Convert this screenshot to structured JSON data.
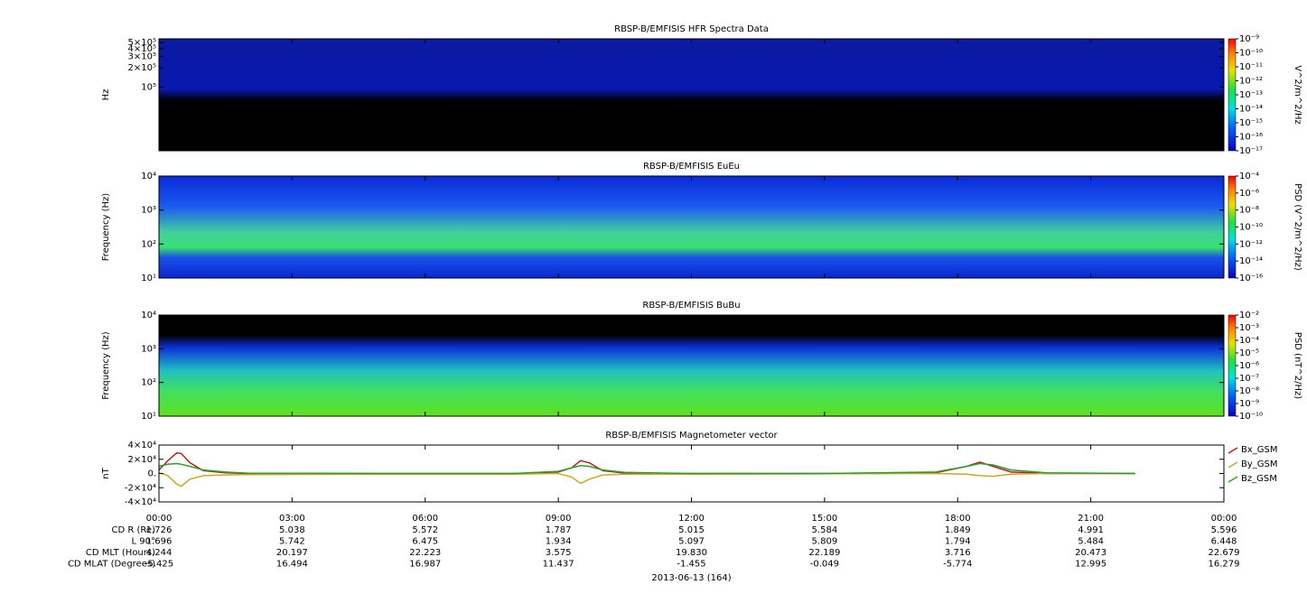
{
  "charts": [
    {
      "type": "spectrogram",
      "title": "RBSP-B/EMFISIS  HFR Spectra Data",
      "ylabel": "Hz",
      "log_y": true,
      "xlim": [
        0,
        24
      ],
      "xticks": [
        0,
        3,
        6,
        9,
        12,
        15,
        18,
        21,
        24
      ],
      "ylim": [
        10000,
        570000
      ],
      "yticks": [
        {
          "value": 100000,
          "label": "10⁵"
        },
        {
          "value": 200000,
          "label": "2×10⁵"
        },
        {
          "value": 300000,
          "label": "3×10⁵"
        },
        {
          "value": 400000,
          "label": "4×10⁵"
        },
        {
          "value": 500000,
          "label": "5×10⁵"
        }
      ],
      "colorbar_label": "V^2/m^2/Hz",
      "clim": [
        1e-17,
        1e-09
      ],
      "cticks": [
        {
          "value": 1e-17,
          "label": "10⁻¹⁷"
        },
        {
          "value": 1e-16,
          "label": "10⁻¹⁶"
        },
        {
          "value": 1e-15,
          "label": "10⁻¹⁵"
        },
        {
          "value": 1e-14,
          "label": "10⁻¹⁴"
        },
        {
          "value": 1e-13,
          "label": "10⁻¹³"
        },
        {
          "value": 1e-12,
          "label": "10⁻¹²"
        },
        {
          "value": 1e-11,
          "label": "10⁻¹¹"
        },
        {
          "value": 1e-10,
          "label": "10⁻¹⁰"
        },
        {
          "value": 1e-09,
          "label": "10⁻⁹"
        }
      ]
    },
    {
      "type": "spectrogram",
      "title": "RBSP-B/EMFISIS  EuEu",
      "ylabel": "Frequency (Hz)",
      "log_y": true,
      "xlim": [
        0,
        24
      ],
      "xticks": [
        0,
        3,
        6,
        9,
        12,
        15,
        18,
        21,
        24
      ],
      "ylim": [
        10,
        10000
      ],
      "yticks": [
        {
          "value": 10,
          "label": "10¹"
        },
        {
          "value": 100,
          "label": "10²"
        },
        {
          "value": 1000,
          "label": "10³"
        },
        {
          "value": 10000,
          "label": "10⁴"
        }
      ],
      "colorbar_label": "PSD (V^2/m^2/Hz)",
      "clim": [
        1e-16,
        0.0001
      ],
      "cticks": [
        {
          "value": 1e-16,
          "label": "10⁻¹⁶"
        },
        {
          "value": 1e-14,
          "label": "10⁻¹⁴"
        },
        {
          "value": 1e-12,
          "label": "10⁻¹²"
        },
        {
          "value": 1e-10,
          "label": "10⁻¹⁰"
        },
        {
          "value": 1e-08,
          "label": "10⁻⁸"
        },
        {
          "value": 1e-06,
          "label": "10⁻⁶"
        },
        {
          "value": 0.0001,
          "label": "10⁻⁴"
        }
      ]
    },
    {
      "type": "spectrogram",
      "title": "RBSP-B/EMFISIS  BuBu",
      "ylabel": "Frequency (Hz)",
      "log_y": true,
      "xlim": [
        0,
        24
      ],
      "xticks": [
        0,
        3,
        6,
        9,
        12,
        15,
        18,
        21,
        24
      ],
      "ylim": [
        10,
        10000
      ],
      "yticks": [
        {
          "value": 10,
          "label": "10¹"
        },
        {
          "value": 100,
          "label": "10²"
        },
        {
          "value": 1000,
          "label": "10³"
        },
        {
          "value": 10000,
          "label": "10⁴"
        }
      ],
      "colorbar_label": "PSD (nT^2/Hz)",
      "clim": [
        1e-10,
        0.01
      ],
      "cticks": [
        {
          "value": 1e-10,
          "label": "10⁻¹⁰"
        },
        {
          "value": 1e-09,
          "label": "10⁻⁹"
        },
        {
          "value": 1e-08,
          "label": "10⁻⁸"
        },
        {
          "value": 1e-07,
          "label": "10⁻⁷"
        },
        {
          "value": 1e-06,
          "label": "10⁻⁶"
        },
        {
          "value": 1e-05,
          "label": "10⁻⁵"
        },
        {
          "value": 0.0001,
          "label": "10⁻⁴"
        },
        {
          "value": 0.001,
          "label": "10⁻³"
        },
        {
          "value": 0.01,
          "label": "10⁻²"
        }
      ]
    },
    {
      "type": "line",
      "title": "RBSP-B/EMFISIS  Magnetometer vector",
      "ylabel": "nT",
      "xlim": [
        0,
        24
      ],
      "xticks": [
        {
          "value": 0,
          "label": "00:00"
        },
        {
          "value": 3,
          "label": "03:00"
        },
        {
          "value": 6,
          "label": "06:00"
        },
        {
          "value": 9,
          "label": "09:00"
        },
        {
          "value": 12,
          "label": "12:00"
        },
        {
          "value": 15,
          "label": "15:00"
        },
        {
          "value": 18,
          "label": "18:00"
        },
        {
          "value": 21,
          "label": "21:00"
        },
        {
          "value": 24,
          "label": "00:00"
        }
      ],
      "ylim": [
        -40000,
        40000
      ],
      "yticks": [
        {
          "value": -40000,
          "label": "-4×10⁴"
        },
        {
          "value": -20000,
          "label": "-2×10⁴"
        },
        {
          "value": 0,
          "label": "0."
        },
        {
          "value": 20000,
          "label": "2×10⁴"
        },
        {
          "value": 40000,
          "label": "4×10⁴"
        }
      ],
      "x": [
        0,
        0.2,
        0.4,
        0.5,
        0.7,
        1,
        1.5,
        2,
        5,
        8,
        9,
        9.3,
        9.5,
        9.7,
        10,
        10.5,
        12,
        15,
        17.5,
        18.2,
        18.5,
        18.8,
        19.2,
        20,
        22
      ],
      "series": [
        {
          "name": "Bx_GSM",
          "color": "#b22222",
          "values": [
            5000,
            18000,
            29000,
            28000,
            15000,
            4000,
            1000,
            0,
            0,
            0,
            2000,
            8000,
            18000,
            15000,
            4000,
            500,
            0,
            0,
            1000,
            10000,
            16000,
            10000,
            2000,
            0,
            0
          ]
        },
        {
          "name": "By_GSM",
          "color": "#c8a82a",
          "values": [
            1000,
            -3000,
            -15000,
            -18000,
            -8000,
            -3000,
            -2000,
            -1500,
            -1000,
            -1000,
            0,
            -5000,
            -14000,
            -8000,
            -2000,
            -1000,
            -1000,
            -500,
            0,
            -1000,
            -3000,
            -4000,
            -1000,
            0,
            0
          ]
        },
        {
          "name": "Bz_GSM",
          "color": "#2ca02c",
          "values": [
            10000,
            13000,
            14000,
            13000,
            10000,
            5000,
            2000,
            500,
            0,
            0,
            3000,
            8000,
            11000,
            10000,
            5000,
            1500,
            0,
            0,
            2000,
            10000,
            14000,
            12000,
            5000,
            1000,
            0
          ]
        }
      ]
    }
  ],
  "ephemeris": {
    "rows": [
      {
        "label": "CD R (Re)",
        "values": [
          "1.726",
          "5.038",
          "5.572",
          "1.787",
          "5.015",
          "5.584",
          "1.849",
          "4.991",
          "5.596"
        ]
      },
      {
        "label": "L 90°",
        "values": [
          "1.696",
          "5.742",
          "6.475",
          "1.934",
          "5.097",
          "5.809",
          "1.794",
          "5.484",
          "6.448"
        ]
      },
      {
        "label": "CD MLT (Hours)",
        "values": [
          "4.244",
          "20.197",
          "22.223",
          "3.575",
          "19.830",
          "22.189",
          "3.716",
          "20.473",
          "22.679"
        ]
      },
      {
        "label": "CD MLAT (Degrees)",
        "values": [
          "-5.425",
          "16.494",
          "16.987",
          "11.437",
          "-1.455",
          "-0.049",
          "-5.774",
          "12.995",
          "16.279"
        ]
      }
    ],
    "date": "2013-06-13 (164)"
  }
}
